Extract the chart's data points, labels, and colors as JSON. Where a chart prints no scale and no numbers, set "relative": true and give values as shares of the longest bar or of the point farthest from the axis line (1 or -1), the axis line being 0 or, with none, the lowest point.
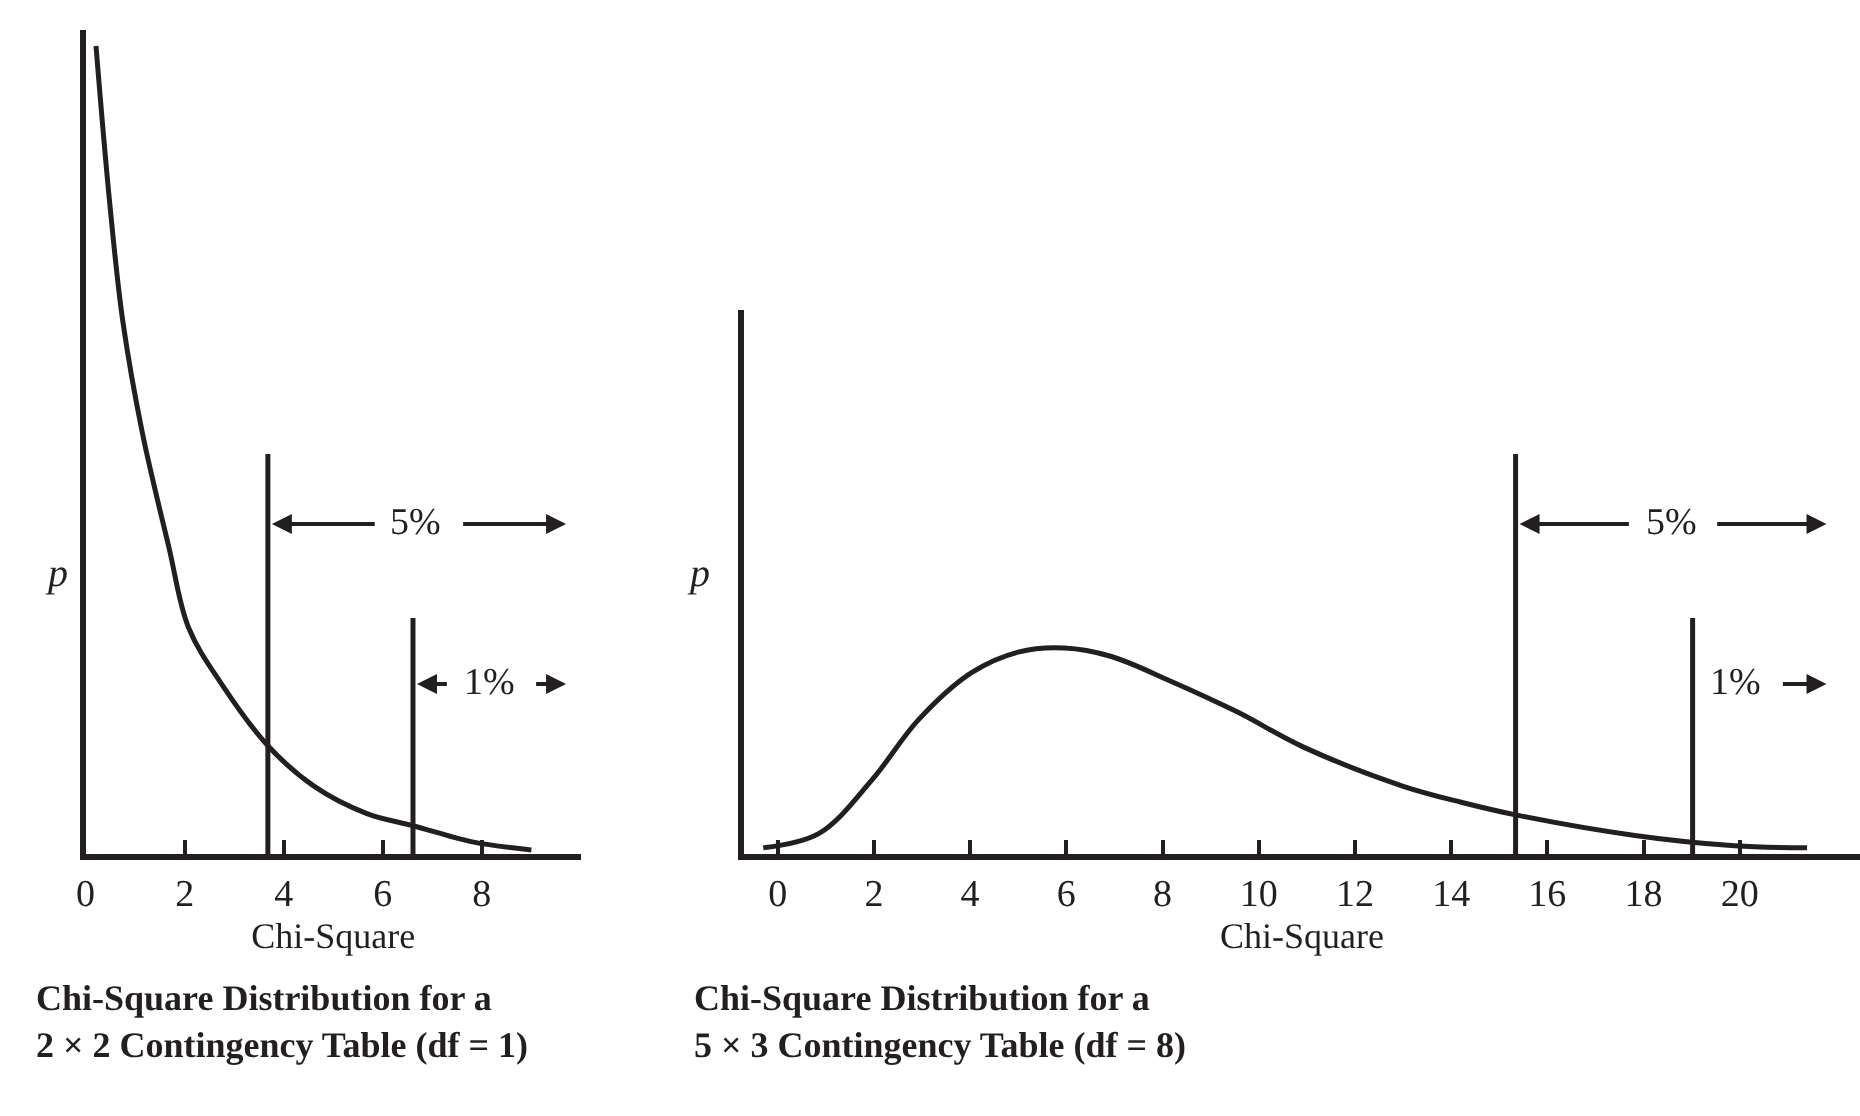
{
  "chart_data": [
    {
      "type": "line",
      "title": "Chi-Square Distribution for a\n2 × 2 Contingency Table (df = 1)",
      "xlabel": "Chi-Square",
      "ylabel": "p",
      "relative": true,
      "x": [
        0.21,
        0.48,
        0.75,
        1.15,
        1.68,
        2.08,
        2.75,
        3.68,
        4.61,
        5.68,
        6.61,
        7.81,
        9.0
      ],
      "series": [
        {
          "color": "#231f20",
          "values": [
            1,
            0.81,
            0.66,
            0.52,
            0.38,
            0.28,
            0.21,
            0.134,
            0.084,
            0.05,
            0.035,
            0.015,
            0.005
          ]
        }
      ],
      "xlim": [
        0,
        10
      ],
      "xticks": [
        0,
        2,
        4,
        6,
        8
      ],
      "ref_lines": [
        {
          "axis": "x",
          "value": 3.68,
          "color": "#231f20"
        },
        {
          "axis": "x",
          "value": 6.61,
          "color": "#231f20"
        }
      ],
      "annotations": [
        "5%",
        "1%"
      ]
    },
    {
      "type": "line",
      "title": "Chi-Square Distribution for a\n5 × 3 Contingency Table (df = 8)",
      "xlabel": "Chi-Square",
      "ylabel": "p",
      "relative": true,
      "x": [
        -0.3,
        0.86,
        1.96,
        2.92,
        4.03,
        5.0,
        5.96,
        6.92,
        8.16,
        9.55,
        10.92,
        12.99,
        14.23,
        15.34,
        17.82,
        19.89,
        21.4
      ],
      "series": [
        {
          "color": "#231f20",
          "values": [
            0.03,
            0.1,
            0.36,
            0.65,
            0.88,
            0.98,
            1,
            0.96,
            0.84,
            0.69,
            0.52,
            0.33,
            0.25,
            0.19,
            0.09,
            0.04,
            0.03
          ]
        }
      ],
      "xlim": [
        -0.7,
        22.5
      ],
      "xticks": [
        0,
        2,
        4,
        6,
        8,
        10,
        12,
        14,
        16,
        18,
        20
      ],
      "ref_lines": [
        {
          "axis": "x",
          "value": 15.34,
          "color": "#231f20"
        },
        {
          "axis": "x",
          "value": 19.02,
          "color": "#231f20"
        }
      ],
      "annotations": [
        "5%",
        "1%"
      ]
    }
  ]
}
